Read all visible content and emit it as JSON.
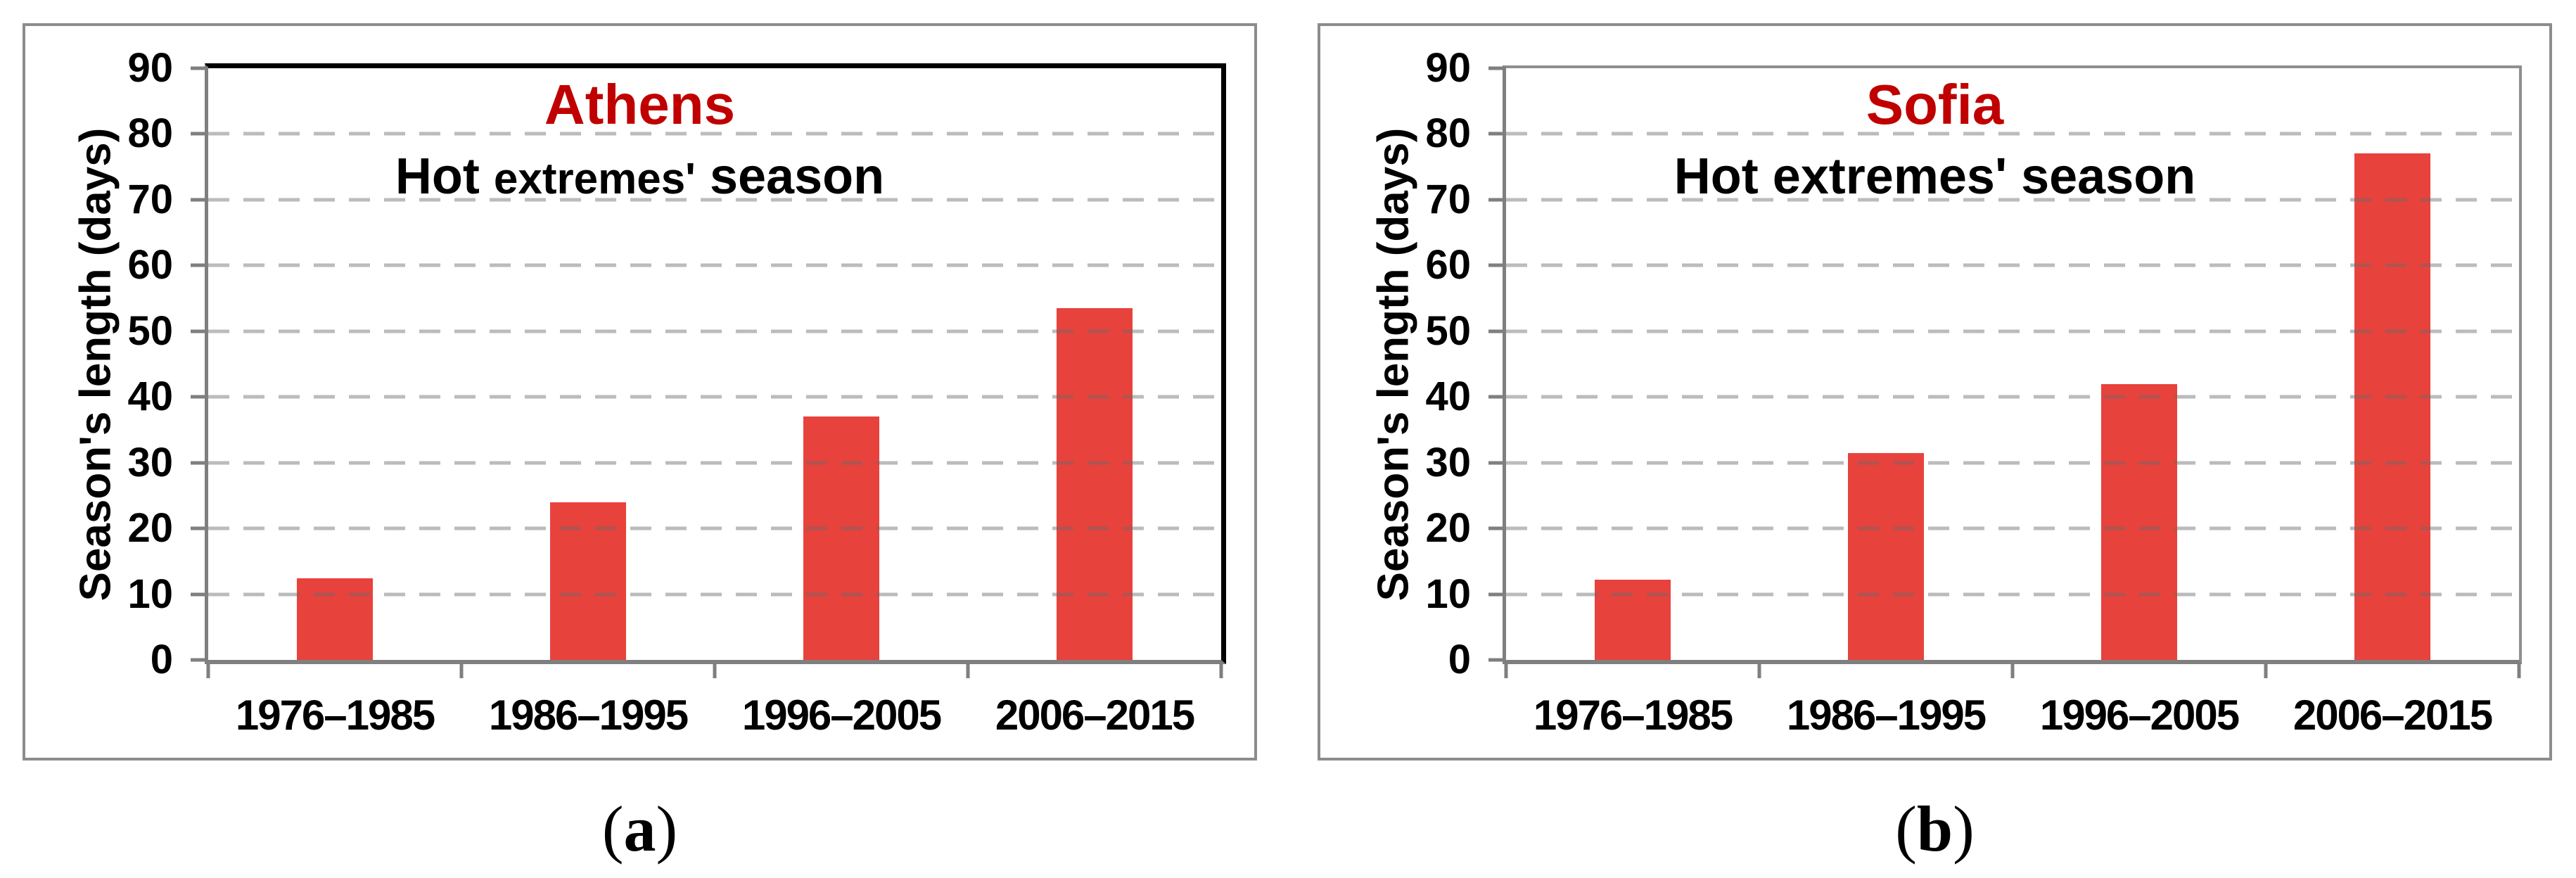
{
  "figure": {
    "background": "#ffffff",
    "captions": [
      {
        "open": "(",
        "letter": "a",
        "close": ")"
      },
      {
        "open": "(",
        "letter": "b",
        "close": ")"
      }
    ]
  },
  "chart_data": [
    {
      "type": "bar",
      "panel": "a",
      "title": "Athens",
      "title_color": "#C00000",
      "subtitle": "Hot extremes' season",
      "subtitle_words": [
        "Hot",
        "extremes'",
        "season"
      ],
      "categories": [
        "1976–1985",
        "1986–1995",
        "1996–2005",
        "2006–2015"
      ],
      "values": [
        12.4,
        24,
        37,
        53.5
      ],
      "xlabel": "",
      "ylabel": "Season's length (days)",
      "ylim": [
        0,
        90
      ],
      "ytick_step": 10,
      "yticks": [
        0,
        10,
        20,
        30,
        40,
        50,
        60,
        70,
        80,
        90
      ],
      "bar_color": "#E8423D",
      "grid": "dashed-horizontal-gray",
      "legend": "none",
      "plot_border": "black-top-right"
    },
    {
      "type": "bar",
      "panel": "b",
      "title": "Sofia",
      "title_color": "#C00000",
      "subtitle": "Hot extremes' season",
      "subtitle_words": [
        "Hot",
        "extremes'",
        "season"
      ],
      "categories": [
        "1976–1985",
        "1986–1995",
        "1996–2005",
        "2006–2015"
      ],
      "values": [
        12.2,
        31.5,
        42,
        77
      ],
      "xlabel": "",
      "ylabel": "Season's length (days)",
      "ylim": [
        0,
        90
      ],
      "ytick_step": 10,
      "yticks": [
        0,
        10,
        20,
        30,
        40,
        50,
        60,
        70,
        80,
        90
      ],
      "bar_color": "#E8423D",
      "grid": "dashed-horizontal-gray",
      "legend": "none",
      "plot_border": "gray"
    }
  ]
}
